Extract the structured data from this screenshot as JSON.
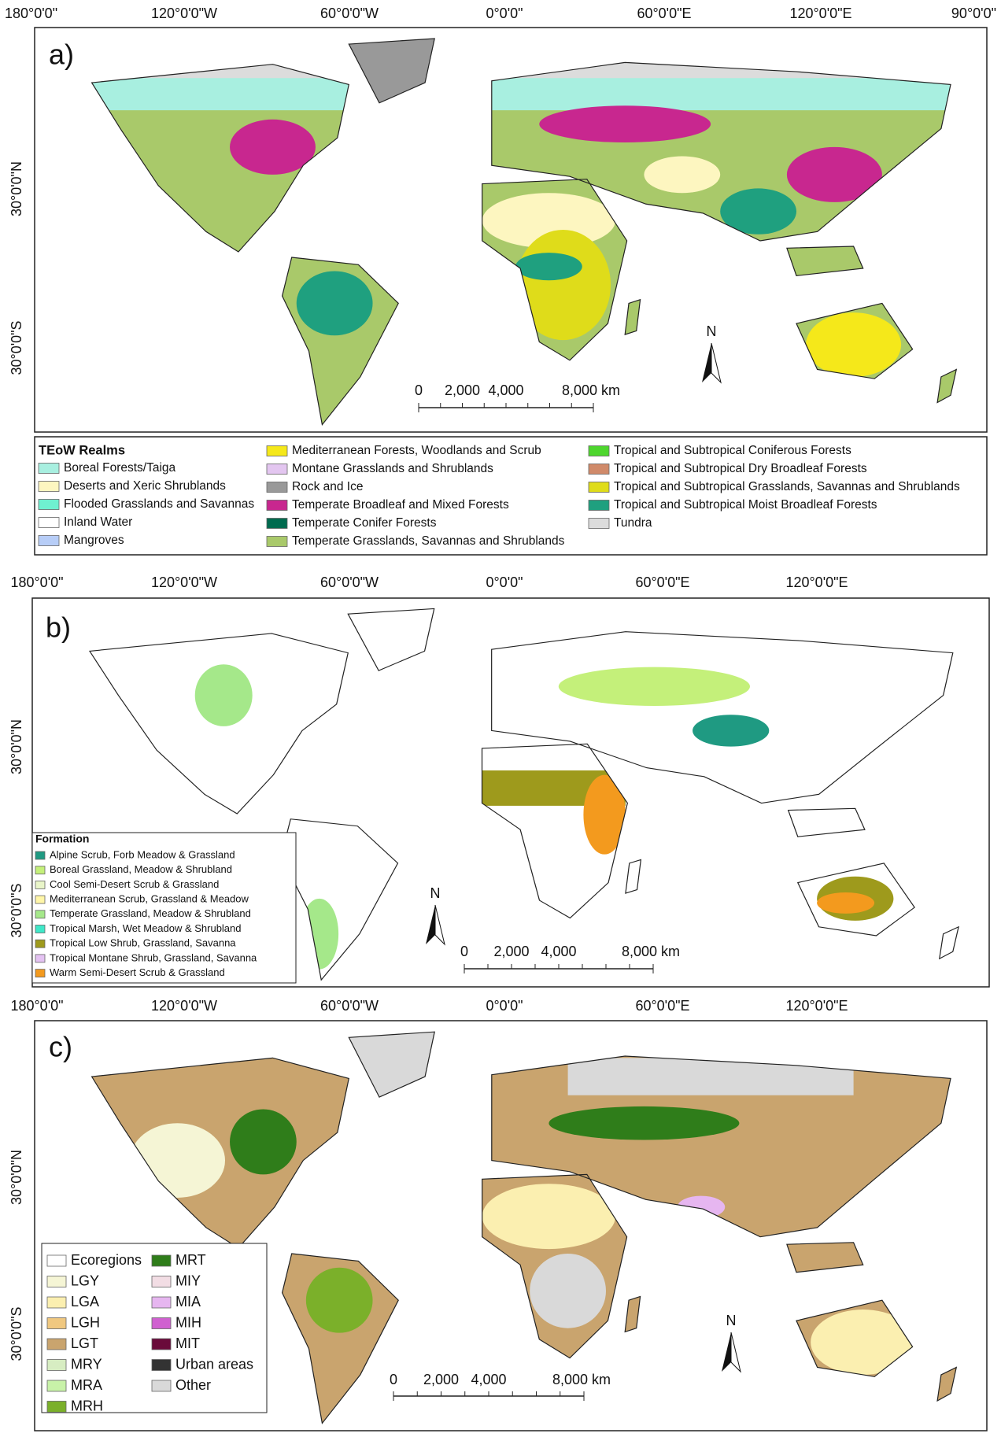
{
  "panels": [
    {
      "label": "a)",
      "top_axis": [
        "180°0'0\"",
        "120°0'0\"W",
        "60°0'0\"W",
        "0°0'0\"",
        "60°0'0\"E",
        "120°0'0\"E",
        "90°0'0\""
      ],
      "left_axis": [
        "30°0'0\"N",
        "30°0'0\"S"
      ],
      "scale_bar": [
        "0",
        "2,000",
        "4,000",
        "8,000 km"
      ],
      "north": "N",
      "legend": {
        "title": "TEoW Realms",
        "items": [
          {
            "label": "Boreal Forests/Taiga",
            "color": "#a8efe0"
          },
          {
            "label": "Deserts and Xeric Shrublands",
            "color": "#fdf6c0"
          },
          {
            "label": "Flooded Grasslands and Savannas",
            "color": "#6ff0d0"
          },
          {
            "label": "Inland Water",
            "color": "#ffffff"
          },
          {
            "label": "Mangroves",
            "color": "#b7cdf7"
          },
          {
            "label": "Mediterranean Forests, Woodlands and Scrub",
            "color": "#f5e81a"
          },
          {
            "label": "Montane Grasslands and Shrublands",
            "color": "#e3c6f0"
          },
          {
            "label": "Rock and Ice",
            "color": "#999999"
          },
          {
            "label": "Temperate Broadleaf and Mixed Forests",
            "color": "#c8278f"
          },
          {
            "label": "Temperate Conifer Forests",
            "color": "#006b4f"
          },
          {
            "label": "Temperate Grasslands, Savannas and Shrublands",
            "color": "#a9c96a"
          },
          {
            "label": "Tropical and Subtropical Coniferous Forests",
            "color": "#4ed62e"
          },
          {
            "label": "Tropical and Subtropical Dry Broadleaf Forests",
            "color": "#d08a6a"
          },
          {
            "label": "Tropical and Subtropical Grasslands, Savannas and Shrublands",
            "color": "#dfdc1a"
          },
          {
            "label": "Tropical and Subtropical Moist Broadleaf Forests",
            "color": "#1fa07f"
          },
          {
            "label": "Tundra",
            "color": "#dcdcdc"
          }
        ]
      }
    },
    {
      "label": "b)",
      "top_axis": [
        "180°0'0\"",
        "120°0'0\"W",
        "60°0'0\"W",
        "0°0'0\"",
        "60°0'0\"E",
        "120°0'0\"E"
      ],
      "left_axis": [
        "30°0'0\"N",
        "30°0'0\"S"
      ],
      "scale_bar": [
        "0",
        "2,000",
        "4,000",
        "8,000 km"
      ],
      "north": "N",
      "legend": {
        "title": "Formation",
        "items": [
          {
            "label": "Alpine Scrub, Forb Meadow & Grassland",
            "color": "#1f9a82"
          },
          {
            "label": "Boreal Grassland, Meadow & Shrubland",
            "color": "#c4f07a"
          },
          {
            "label": "Cool Semi-Desert Scrub & Grassland",
            "color": "#e9f5c9"
          },
          {
            "label": "Mediterranean Scrub, Grassland & Meadow",
            "color": "#fff6a8"
          },
          {
            "label": "Temperate Grassland, Meadow & Shrubland",
            "color": "#a5e88a"
          },
          {
            "label": "Tropical Marsh, Wet Meadow & Shrubland",
            "color": "#3fe8c8"
          },
          {
            "label": "Tropical Low Shrub, Grassland, Savanna",
            "color": "#9e9a1c"
          },
          {
            "label": "Tropical Montane Shrub, Grassland, Savanna",
            "color": "#e4c2f2"
          },
          {
            "label": "Warm Semi-Desert Scrub & Grassland",
            "color": "#f39a1e"
          }
        ]
      }
    },
    {
      "label": "c)",
      "top_axis": [
        "180°0'0\"",
        "120°0'0\"W",
        "60°0'0\"W",
        "0°0'0\"",
        "60°0'0\"E",
        "120°0'0\"E"
      ],
      "left_axis": [
        "30°0'0\"N",
        "30°0'0\"S"
      ],
      "scale_bar": [
        "0",
        "2,000",
        "4,000",
        "8,000 km"
      ],
      "north": "N",
      "legend": {
        "items": [
          {
            "label": "Ecoregions",
            "color": "#ffffff"
          },
          {
            "label": "LGY",
            "color": "#f5f5d5"
          },
          {
            "label": "LGA",
            "color": "#fbefb0"
          },
          {
            "label": "LGH",
            "color": "#f0c880"
          },
          {
            "label": "LGT",
            "color": "#c9a46e"
          },
          {
            "label": "MRY",
            "color": "#d7edc2"
          },
          {
            "label": "MRA",
            "color": "#c8f2a8"
          },
          {
            "label": "MRH",
            "color": "#7bb02a"
          },
          {
            "label": "MRT",
            "color": "#2f7d1a"
          },
          {
            "label": "MIY",
            "color": "#f2dde4"
          },
          {
            "label": "MIA",
            "color": "#e6b6f0"
          },
          {
            "label": "MIH",
            "color": "#d060d0"
          },
          {
            "label": "MIT",
            "color": "#6a0a3a"
          },
          {
            "label": "Urban areas",
            "color": "#333333"
          },
          {
            "label": "Other",
            "color": "#d9d9d9"
          }
        ]
      }
    }
  ]
}
